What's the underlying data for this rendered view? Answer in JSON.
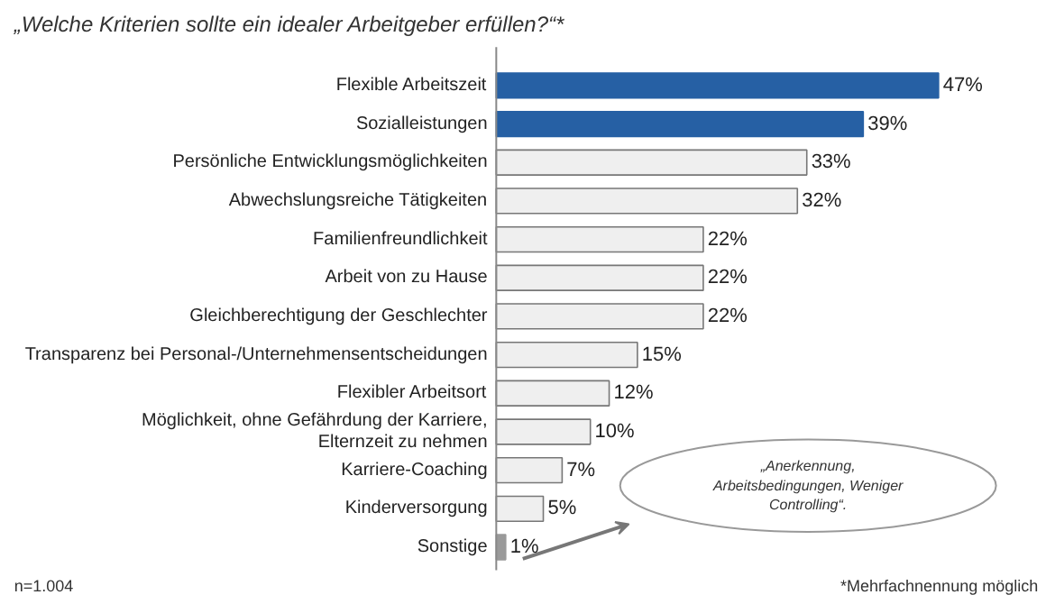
{
  "chart_data": {
    "type": "bar",
    "orientation": "horizontal",
    "title": "„Welche Kriterien sollte ein idealer Arbeitgeber erfüllen?“*",
    "categories": [
      "Flexible Arbeitszeit",
      "Sozialleistungen",
      "Persönliche Entwicklungsmöglichkeiten",
      "Abwechslungsreiche Tätigkeiten",
      "Familienfreundlichkeit",
      "Arbeit von zu Hause",
      "Gleichberechtigung der Geschlechter",
      "Transparenz bei Personal-/Unternehmensentscheidungen",
      "Flexibler Arbeitsort",
      "Möglichkeit, ohne Gefährdung der Karriere,\nElternzeit zu nehmen",
      "Karriere-Coaching",
      "Kinderversorgung",
      "Sonstige"
    ],
    "values": [
      47,
      39,
      33,
      32,
      22,
      22,
      22,
      15,
      12,
      10,
      7,
      5,
      1
    ],
    "colors": [
      "#2660a4",
      "#2660a4",
      "#efefef",
      "#efefef",
      "#efefef",
      "#efefef",
      "#efefef",
      "#efefef",
      "#efefef",
      "#efefef",
      "#efefef",
      "#efefef",
      "#9a9a9a"
    ],
    "value_labels": [
      "47%",
      "39%",
      "33%",
      "32%",
      "22%",
      "22%",
      "22%",
      "15%",
      "12%",
      "10%",
      "7%",
      "5%",
      "1%"
    ],
    "annotations": [
      "„Anerkennung,\nArbeitsbedingungen, Weniger\nControlling“.",
      "n=1.004",
      "*Mehrfachnennung möglich"
    ]
  }
}
